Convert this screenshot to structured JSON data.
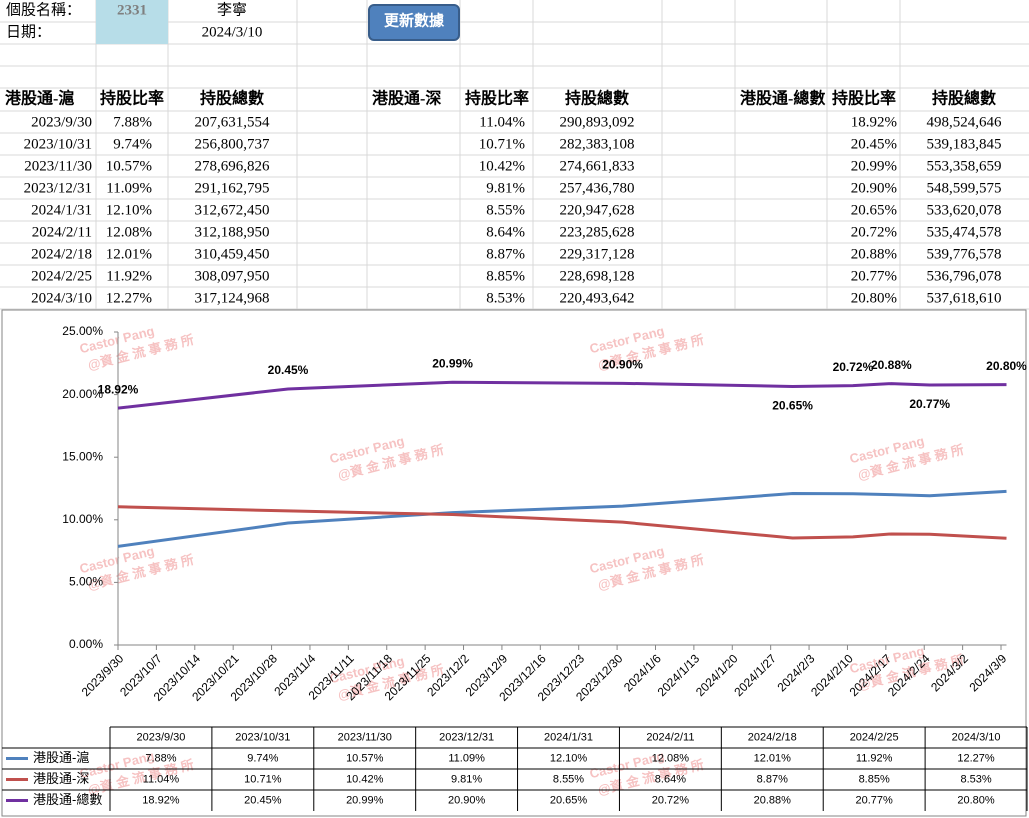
{
  "sheet": {
    "stock_label": "個股名稱：",
    "stock_code": "2331",
    "stock_name": "李寧",
    "date_label": "日期：",
    "date": "2024/3/10",
    "button": "更新數據",
    "tables": [
      {
        "headers": [
          "港股通-滬",
          "持股比率",
          "持股總數"
        ],
        "rows": [
          [
            "2023/9/30",
            "7.88%",
            "207,631,554"
          ],
          [
            "2023/10/31",
            "9.74%",
            "256,800,737"
          ],
          [
            "2023/11/30",
            "10.57%",
            "278,696,826"
          ],
          [
            "2023/12/31",
            "11.09%",
            "291,162,795"
          ],
          [
            "2024/1/31",
            "12.10%",
            "312,672,450"
          ],
          [
            "2024/2/11",
            "12.08%",
            "312,188,950"
          ],
          [
            "2024/2/18",
            "12.01%",
            "310,459,450"
          ],
          [
            "2024/2/25",
            "11.92%",
            "308,097,950"
          ],
          [
            "2024/3/10",
            "12.27%",
            "317,124,968"
          ]
        ]
      },
      {
        "headers": [
          "港股通-深",
          "持股比率",
          "持股總數"
        ],
        "rows": [
          [
            "11.04%",
            "290,893,092"
          ],
          [
            "10.71%",
            "282,383,108"
          ],
          [
            "10.42%",
            "274,661,833"
          ],
          [
            "9.81%",
            "257,436,780"
          ],
          [
            "8.55%",
            "220,947,628"
          ],
          [
            "8.64%",
            "223,285,628"
          ],
          [
            "8.87%",
            "229,317,128"
          ],
          [
            "8.85%",
            "228,698,128"
          ],
          [
            "8.53%",
            "220,493,642"
          ]
        ]
      },
      {
        "headers": [
          "港股通-總數",
          "持股比率",
          "持股總數"
        ],
        "rows": [
          [
            "18.92%",
            "498,524,646"
          ],
          [
            "20.45%",
            "539,183,845"
          ],
          [
            "20.99%",
            "553,358,659"
          ],
          [
            "20.90%",
            "548,599,575"
          ],
          [
            "20.65%",
            "533,620,078"
          ],
          [
            "20.72%",
            "535,474,578"
          ],
          [
            "20.88%",
            "539,776,578"
          ],
          [
            "20.77%",
            "536,796,078"
          ],
          [
            "20.80%",
            "537,618,610"
          ]
        ]
      }
    ]
  },
  "watermark": {
    "line1": "Castor Pang",
    "line2": "@資 金 流 事 務 所"
  },
  "chart_data": {
    "type": "line",
    "x": [
      "2023/9/30",
      "2023/10/31",
      "2023/11/30",
      "2023/12/31",
      "2024/1/31",
      "2024/2/11",
      "2024/2/18",
      "2024/2/25",
      "2024/3/10"
    ],
    "xlim": [
      "2023/9/30",
      "2024/3/10"
    ],
    "xticks": [
      "2023/9/30",
      "2023/10/7",
      "2023/10/14",
      "2023/10/21",
      "2023/10/28",
      "2023/11/4",
      "2023/11/11",
      "2023/11/18",
      "2023/11/25",
      "2023/12/2",
      "2023/12/9",
      "2023/12/16",
      "2023/12/23",
      "2023/12/30",
      "2024/1/6",
      "2024/1/13",
      "2024/1/20",
      "2024/1/27",
      "2024/2/3",
      "2024/2/10",
      "2024/2/17",
      "2024/2/24",
      "2024/3/2",
      "2024/3/9"
    ],
    "ylim": [
      0,
      25
    ],
    "yticks": [
      {
        "value": 0,
        "label": "0.00%"
      },
      {
        "value": 5,
        "label": "5.00%"
      },
      {
        "value": 10,
        "label": "10.00%"
      },
      {
        "value": 15,
        "label": "15.00%"
      },
      {
        "value": 20,
        "label": "20.00%"
      },
      {
        "value": 25,
        "label": "25.00%"
      }
    ],
    "grid": false,
    "series": [
      {
        "name": "港股通-滬",
        "color": "#4f81bd",
        "values": [
          7.88,
          9.74,
          10.57,
          11.09,
          12.1,
          12.08,
          12.01,
          11.92,
          12.27
        ],
        "value_labels": [
          "7.88%",
          "9.74%",
          "10.57%",
          "11.09%",
          "12.10%",
          "12.08%",
          "12.01%",
          "11.92%",
          "12.27%"
        ],
        "show_labels": false
      },
      {
        "name": "港股通-深",
        "color": "#c0504d",
        "values": [
          11.04,
          10.71,
          10.42,
          9.81,
          8.55,
          8.64,
          8.87,
          8.85,
          8.53
        ],
        "value_labels": [
          "11.04%",
          "10.71%",
          "10.42%",
          "9.81%",
          "8.55%",
          "8.64%",
          "8.87%",
          "8.85%",
          "8.53%"
        ],
        "show_labels": false
      },
      {
        "name": "港股通-總數",
        "color": "#7030a0",
        "values": [
          18.92,
          20.45,
          20.99,
          20.9,
          20.65,
          20.72,
          20.88,
          20.77,
          20.8
        ],
        "value_labels": [
          "18.92%",
          "20.45%",
          "20.99%",
          "20.90%",
          "20.65%",
          "20.72%",
          "20.88%",
          "20.77%",
          "20.80%"
        ],
        "show_labels": true
      }
    ]
  }
}
